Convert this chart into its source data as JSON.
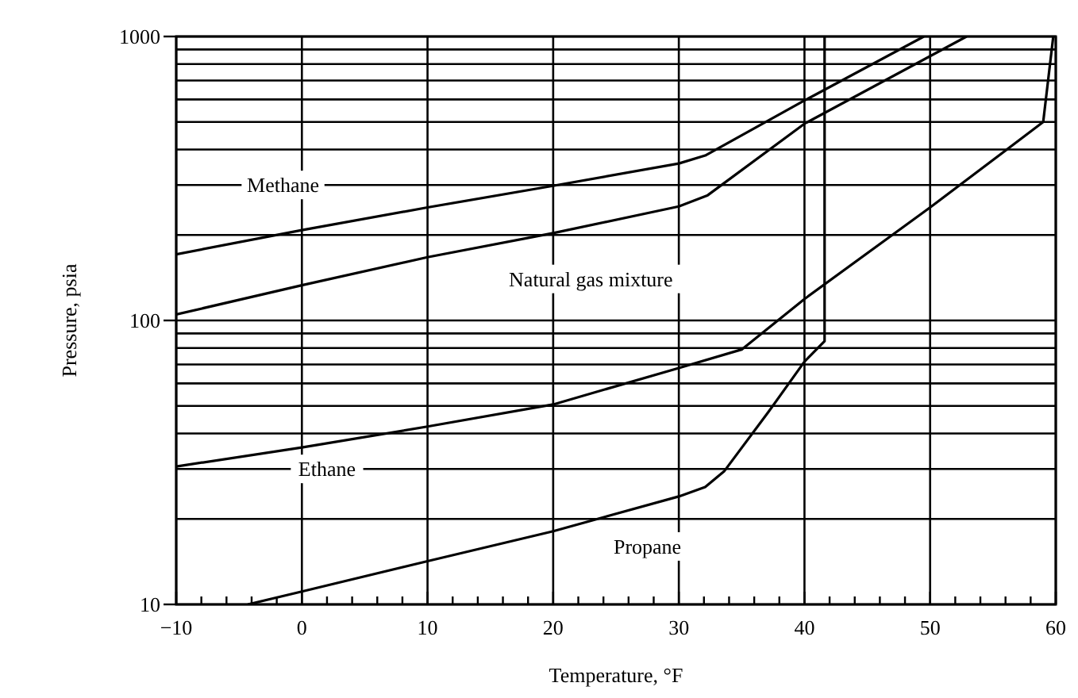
{
  "chart_data": {
    "type": "line",
    "xlabel": "Temperature, °F",
    "ylabel": "Pressure, psia",
    "log": "y",
    "grid": true,
    "line_style": "solid",
    "xlim": [
      -10,
      60
    ],
    "xticks": [
      {
        "value": -10,
        "label": "−10"
      },
      {
        "value": -8,
        "label": null
      },
      {
        "value": -6,
        "label": null
      },
      {
        "value": -4,
        "label": null
      },
      {
        "value": -2,
        "label": null
      },
      0,
      {
        "value": 2,
        "label": null
      },
      {
        "value": 4,
        "label": null
      },
      {
        "value": 6,
        "label": null
      },
      {
        "value": 8,
        "label": null
      },
      10,
      {
        "value": 12,
        "label": null
      },
      {
        "value": 14,
        "label": null
      },
      {
        "value": 16,
        "label": null
      },
      {
        "value": 18,
        "label": null
      },
      20,
      {
        "value": 22,
        "label": null
      },
      {
        "value": 24,
        "label": null
      },
      {
        "value": 26,
        "label": null
      },
      {
        "value": 28,
        "label": null
      },
      30,
      {
        "value": 32,
        "label": null
      },
      {
        "value": 34,
        "label": null
      },
      {
        "value": 36,
        "label": null
      },
      {
        "value": 38,
        "label": null
      },
      40,
      {
        "value": 42,
        "label": null
      },
      {
        "value": 44,
        "label": null
      },
      {
        "value": 46,
        "label": null
      },
      {
        "value": 48,
        "label": null
      },
      50,
      {
        "value": 52,
        "label": null
      },
      {
        "value": 54,
        "label": null
      },
      {
        "value": 56,
        "label": null
      },
      {
        "value": 58,
        "label": null
      },
      60
    ],
    "ylim": [
      10,
      1000
    ],
    "yticks": [
      10,
      {
        "value": 20,
        "label": null
      },
      {
        "value": 30,
        "label": null
      },
      {
        "value": 40,
        "label": null
      },
      {
        "value": 50,
        "label": null
      },
      {
        "value": 60,
        "label": null
      },
      {
        "value": 70,
        "label": null
      },
      {
        "value": 80,
        "label": null
      },
      {
        "value": 90,
        "label": null
      },
      100,
      {
        "value": 200,
        "label": null
      },
      {
        "value": 300,
        "label": null
      },
      {
        "value": 400,
        "label": null
      },
      {
        "value": 500,
        "label": null
      },
      {
        "value": 600,
        "label": null
      },
      {
        "value": 700,
        "label": null
      },
      {
        "value": 800,
        "label": null
      },
      {
        "value": 900,
        "label": null
      },
      1000
    ],
    "series": [
      {
        "name": "Methane",
        "color": "#000000",
        "x": [
          -10,
          0,
          10,
          20,
          30,
          32.1,
          40,
          49.5
        ],
        "values": [
          171,
          208,
          250,
          298,
          357,
          381,
          595,
          1000
        ]
      },
      {
        "name": "Natural gas mixture",
        "color": "#000000",
        "x": [
          -10,
          0,
          10,
          20,
          30,
          32.3,
          40,
          52.9
        ],
        "values": [
          105,
          133,
          167,
          203,
          252,
          276,
          493,
          1000
        ]
      },
      {
        "name": "Ethane",
        "color": "#000000",
        "x": [
          -10,
          0,
          10,
          20,
          30,
          35,
          40,
          50,
          59,
          59.8
        ],
        "values": [
          30.6,
          35.7,
          42.3,
          50.6,
          68,
          79,
          119,
          250,
          500,
          1000
        ]
      },
      {
        "name": "Propane",
        "color": "#000000",
        "x": [
          -4.3,
          0,
          10,
          20,
          30,
          32.1,
          33.6,
          37.1,
          40,
          41.6,
          41.6
        ],
        "values": [
          10,
          11.1,
          14.2,
          18.1,
          24,
          25.9,
          29.4,
          47.4,
          71.6,
          84.5,
          1000
        ]
      }
    ]
  }
}
